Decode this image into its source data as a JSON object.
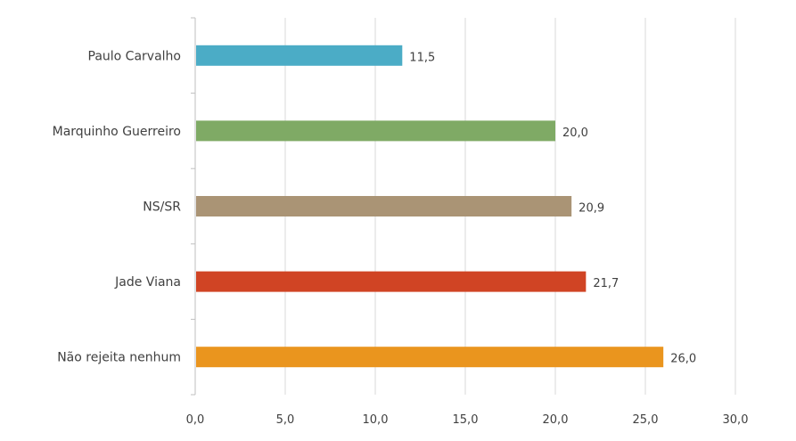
{
  "chart_data": {
    "type": "bar",
    "orientation": "horizontal",
    "categories": [
      "Paulo Carvalho",
      "Marquinho Guerreiro",
      "NS/SR",
      "Jade Viana",
      "Não rejeita nenhum"
    ],
    "values": [
      11.5,
      20.0,
      20.9,
      21.7,
      26.0
    ],
    "value_labels": [
      "11,5",
      "20,0",
      "20,9",
      "21,7",
      "26,0"
    ],
    "colors": [
      "#4BACC6",
      "#7FAA65",
      "#AA9475",
      "#D04424",
      "#EA951E"
    ],
    "xlim": [
      0,
      30
    ],
    "xticks": [
      0,
      5,
      10,
      15,
      20,
      25,
      30
    ],
    "xtick_labels": [
      "0,0",
      "5,0",
      "10,0",
      "15,0",
      "20,0",
      "25,0",
      "30,0"
    ],
    "grid": true,
    "legend": "none",
    "title": "",
    "xlabel": "",
    "ylabel": ""
  }
}
